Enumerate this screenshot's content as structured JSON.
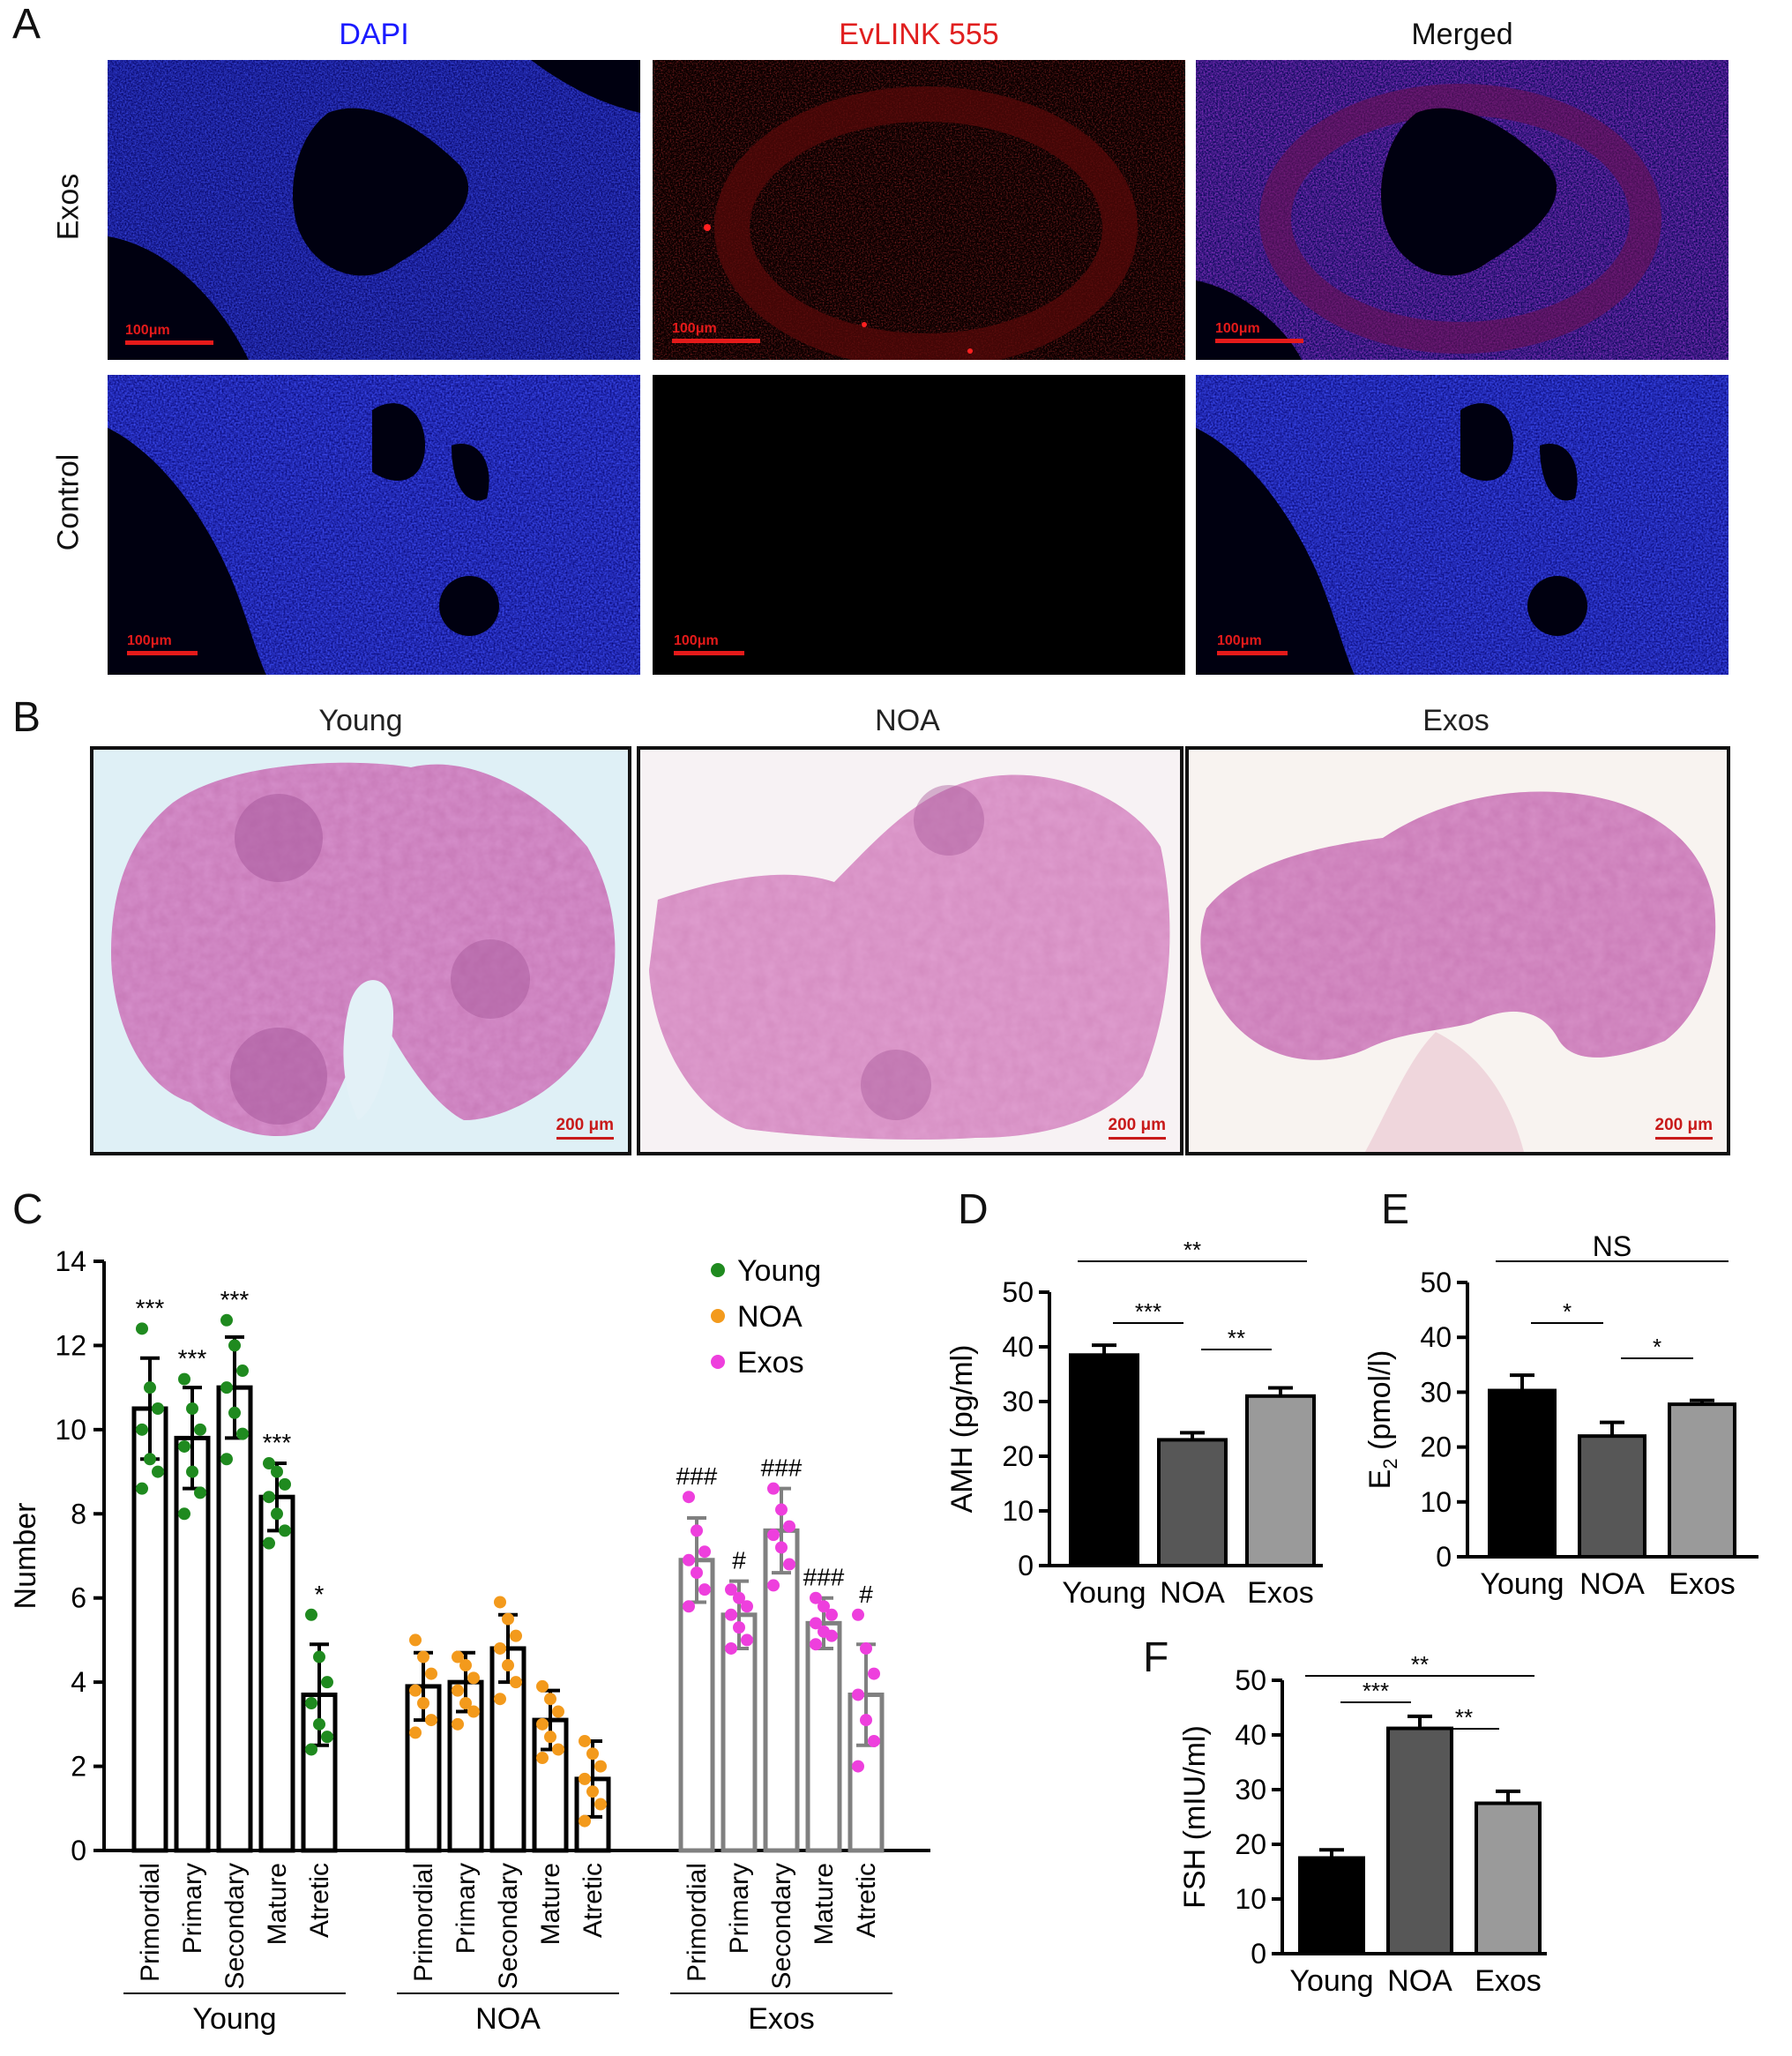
{
  "panels": {
    "A": {
      "label": "A",
      "columns": [
        "DAPI",
        "EvLINK 555",
        "Merged"
      ],
      "column_colors": [
        "#1a1aff",
        "#e01f1f",
        "#111111"
      ],
      "rows": [
        "Exos",
        "Control"
      ],
      "scale_bar": "100μm"
    },
    "B": {
      "label": "B",
      "columns": [
        "Young",
        "NOA",
        "Exos"
      ],
      "scale_bar": "200 μm"
    },
    "C": {
      "label": "C"
    },
    "D": {
      "label": "D"
    },
    "E": {
      "label": "E"
    },
    "F": {
      "label": "F"
    }
  },
  "chart_data": [
    {
      "id": "C",
      "type": "bar",
      "ylabel": "Number",
      "ylim": [
        0,
        14
      ],
      "yticks": [
        0,
        2,
        4,
        6,
        8,
        10,
        12,
        14
      ],
      "categories": [
        "Primordial",
        "Primary",
        "Secondary",
        "Mature",
        "Atretic"
      ],
      "legend": {
        "placement": "top-right",
        "entries": [
          "Young",
          "NOA",
          "Exos"
        ]
      },
      "series": [
        {
          "name": "Young",
          "color": "#1f8a1f",
          "bar_edge": "#000000",
          "values": [
            10.5,
            9.8,
            11.0,
            8.4,
            3.7
          ],
          "sd": [
            1.2,
            1.2,
            1.2,
            0.8,
            1.2
          ],
          "annotations": [
            "***",
            "***",
            "***",
            "***",
            "*"
          ],
          "points": [
            [
              12.4,
              11.0,
              10.5,
              10.0,
              9.3,
              9.0,
              8.6
            ],
            [
              11.2,
              10.5,
              10.0,
              9.6,
              9.0,
              8.5,
              8.0
            ],
            [
              12.6,
              12.0,
              11.4,
              11.0,
              10.4,
              9.9,
              9.3
            ],
            [
              9.2,
              9.0,
              8.7,
              8.4,
              8.0,
              7.6,
              7.3
            ],
            [
              5.6,
              4.6,
              4.0,
              3.5,
              3.0,
              2.7,
              2.4
            ]
          ]
        },
        {
          "name": "NOA",
          "color": "#f39a1c",
          "bar_edge": "#000000",
          "values": [
            3.9,
            4.0,
            4.8,
            3.1,
            1.7
          ],
          "sd": [
            0.8,
            0.7,
            0.8,
            0.7,
            0.9
          ],
          "annotations": [
            "",
            "",
            "",
            "",
            ""
          ],
          "points": [
            [
              5.0,
              4.6,
              4.2,
              3.8,
              3.5,
              3.1,
              2.8
            ],
            [
              4.6,
              4.4,
              4.1,
              3.8,
              3.5,
              3.3,
              3.0
            ],
            [
              5.9,
              5.5,
              5.1,
              4.8,
              4.4,
              4.0,
              3.6
            ],
            [
              3.9,
              3.6,
              3.3,
              3.0,
              2.7,
              2.4,
              2.2
            ],
            [
              2.6,
              2.3,
              2.0,
              1.7,
              1.4,
              1.1,
              0.7
            ]
          ]
        },
        {
          "name": "Exos",
          "color": "#ee3fdd",
          "bar_edge": "#808080",
          "values": [
            6.9,
            5.6,
            7.6,
            5.4,
            3.7
          ],
          "sd": [
            1.0,
            0.8,
            1.0,
            0.6,
            1.2
          ],
          "annotations": [
            "###",
            "#",
            "###",
            "###",
            "#"
          ],
          "points": [
            [
              8.4,
              7.6,
              7.1,
              6.9,
              6.6,
              6.2,
              5.8
            ],
            [
              6.2,
              6.0,
              5.8,
              5.6,
              5.3,
              5.0,
              4.8
            ],
            [
              8.6,
              8.1,
              7.7,
              7.5,
              7.2,
              6.8,
              6.3
            ],
            [
              6.0,
              5.8,
              5.6,
              5.4,
              5.2,
              5.1,
              4.9
            ],
            [
              5.6,
              4.8,
              4.2,
              3.7,
              3.1,
              2.6,
              2.0
            ]
          ]
        }
      ],
      "group_labels": [
        "Young",
        "NOA",
        "Exos"
      ]
    },
    {
      "id": "D",
      "type": "bar",
      "ylabel": "AMH (pg/ml)",
      "ylim": [
        0,
        50
      ],
      "yticks": [
        0,
        10,
        20,
        30,
        40,
        50
      ],
      "categories": [
        "Young",
        "NOA",
        "Exos"
      ],
      "values": [
        38.5,
        23.0,
        31.0
      ],
      "sem": [
        1.8,
        1.3,
        1.5
      ],
      "bar_colors": [
        "#000000",
        "#575757",
        "#9a9a9a"
      ],
      "comparisons": [
        {
          "from": 0,
          "to": 1,
          "label": "***"
        },
        {
          "from": 1,
          "to": 2,
          "label": "**"
        },
        {
          "from": 0,
          "to": 2,
          "label": "**"
        }
      ]
    },
    {
      "id": "E",
      "type": "bar",
      "ylabel": "E2 (pmol/l)",
      "ylabel_main": "E",
      "ylabel_sub": "2",
      "ylabel_rest": " (pmol/l)",
      "ylim": [
        0,
        50
      ],
      "yticks": [
        0,
        10,
        20,
        30,
        40,
        50
      ],
      "categories": [
        "Young",
        "NOA",
        "Exos"
      ],
      "values": [
        30.3,
        22.0,
        27.8
      ],
      "sem": [
        2.8,
        2.5,
        0.7
      ],
      "bar_colors": [
        "#000000",
        "#575757",
        "#9a9a9a"
      ],
      "comparisons": [
        {
          "from": 0,
          "to": 1,
          "label": "*"
        },
        {
          "from": 1,
          "to": 2,
          "label": "*"
        },
        {
          "from": 0,
          "to": 2,
          "label": "NS"
        }
      ]
    },
    {
      "id": "F",
      "type": "bar",
      "ylabel": "FSH (mIU/ml)",
      "ylim": [
        0,
        50
      ],
      "yticks": [
        0,
        10,
        20,
        30,
        40,
        50
      ],
      "categories": [
        "Young",
        "NOA",
        "Exos"
      ],
      "values": [
        17.5,
        41.2,
        27.5
      ],
      "sem": [
        1.5,
        2.2,
        2.2
      ],
      "bar_colors": [
        "#000000",
        "#575757",
        "#9a9a9a"
      ],
      "comparisons": [
        {
          "from": 0,
          "to": 1,
          "label": "***"
        },
        {
          "from": 1,
          "to": 2,
          "label": "**"
        },
        {
          "from": 0,
          "to": 2,
          "label": "**"
        }
      ]
    }
  ]
}
